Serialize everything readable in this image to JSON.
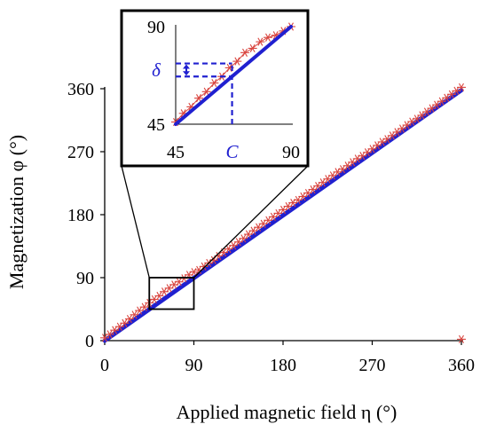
{
  "chart_data": {
    "type": "line",
    "xlabel": "Applied magnetic field η (°)",
    "ylabel": "Magnetization φ (°)",
    "xlim": [
      0,
      360
    ],
    "ylim": [
      0,
      360
    ],
    "xticks": [
      "0",
      "90",
      "180",
      "270",
      "360"
    ],
    "yticks": [
      "0",
      "90",
      "180",
      "270",
      "360"
    ],
    "grid": false,
    "series": [
      {
        "marker": "asterisk",
        "color": "#d9453f",
        "x": [
          0,
          5,
          10,
          15,
          20,
          25,
          30,
          35,
          40,
          45,
          50,
          55,
          60,
          65,
          70,
          75,
          80,
          85,
          90,
          95,
          100,
          105,
          110,
          115,
          120,
          125,
          130,
          135,
          140,
          145,
          150,
          155,
          160,
          165,
          170,
          175,
          180,
          185,
          190,
          195,
          200,
          205,
          210,
          215,
          220,
          225,
          230,
          235,
          240,
          245,
          250,
          255,
          260,
          265,
          270,
          275,
          280,
          285,
          290,
          295,
          300,
          305,
          310,
          315,
          320,
          325,
          330,
          335,
          340,
          345,
          350,
          355,
          360
        ],
        "y": [
          4,
          9,
          15,
          20,
          25,
          31,
          37,
          43,
          48,
          54,
          59,
          64,
          70,
          75,
          80,
          84,
          89,
          94,
          98,
          101,
          106,
          111,
          115,
          121,
          126,
          131,
          136,
          141,
          146,
          152,
          157,
          162,
          167,
          172,
          177,
          182,
          187,
          192,
          197,
          201,
          206,
          211,
          216,
          221,
          226,
          231,
          236,
          241,
          245,
          250,
          255,
          260,
          264,
          269,
          274,
          279,
          284,
          288,
          293,
          298,
          303,
          308,
          313,
          317,
          322,
          327,
          332,
          337,
          342,
          347,
          352,
          357,
          362
        ]
      },
      {
        "outlier": true,
        "marker": "asterisk",
        "color": "#d9453f",
        "x": [
          360
        ],
        "y": [
          2
        ]
      },
      {
        "line": "solid",
        "color": "#2020d0",
        "x": [
          0,
          360
        ],
        "y": [
          0,
          358
        ]
      }
    ],
    "inset": {
      "xlim": [
        45,
        90
      ],
      "ylim": [
        45,
        90
      ],
      "xticks": [
        "45",
        "90"
      ],
      "yticks": [
        "45",
        "90"
      ],
      "x_marker_label": "C",
      "y_marker_label": "δ",
      "marker_x": 67,
      "delta_y": [
        67,
        73
      ],
      "red_x": [
        45,
        48,
        51,
        54,
        57,
        60,
        63,
        66,
        69,
        72,
        75,
        78,
        81,
        84,
        87,
        90
      ],
      "red_y": [
        46,
        50,
        53,
        57,
        60,
        64,
        67,
        71,
        74,
        78,
        80,
        83,
        85,
        86,
        88,
        90
      ],
      "blue_x": [
        45,
        90
      ],
      "blue_y": [
        45,
        90
      ]
    }
  },
  "colors": {
    "red": "#d9453f",
    "blue": "#2020d0",
    "axis": "#000000"
  }
}
